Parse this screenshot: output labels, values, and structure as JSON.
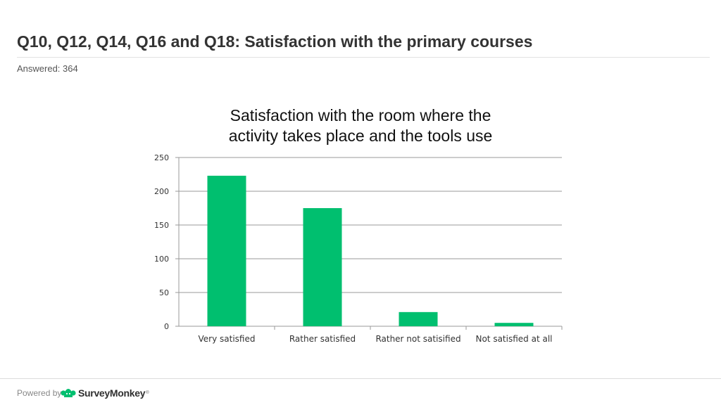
{
  "header": {
    "title": "Q10, Q12, Q14, Q16 and Q18: Satisfaction with the primary courses",
    "answered": "Answered: 364"
  },
  "footer": {
    "powered_by": "Powered by",
    "brand": "SurveyMonkey",
    "brand_mark": "®",
    "brand_icon": "surveymonkey-logo-icon"
  },
  "colors": {
    "bar": "#00bf6f",
    "grid": "#9a9a9a"
  },
  "chart_data": {
    "type": "bar",
    "title": "Satisfaction with the room where the activity takes place and the tools use",
    "title_lines": [
      "Satisfaction with the room where the",
      "activity takes place and the tools use"
    ],
    "categories": [
      "Very satisfied",
      "Rather satisfied",
      "Rather not satisified",
      "Not satisfied at all"
    ],
    "values": [
      223,
      175,
      21,
      5
    ],
    "ylim": [
      0,
      250
    ],
    "yticks": [
      0,
      50,
      100,
      150,
      200,
      250
    ],
    "grid": true,
    "xlabel": "",
    "ylabel": ""
  }
}
